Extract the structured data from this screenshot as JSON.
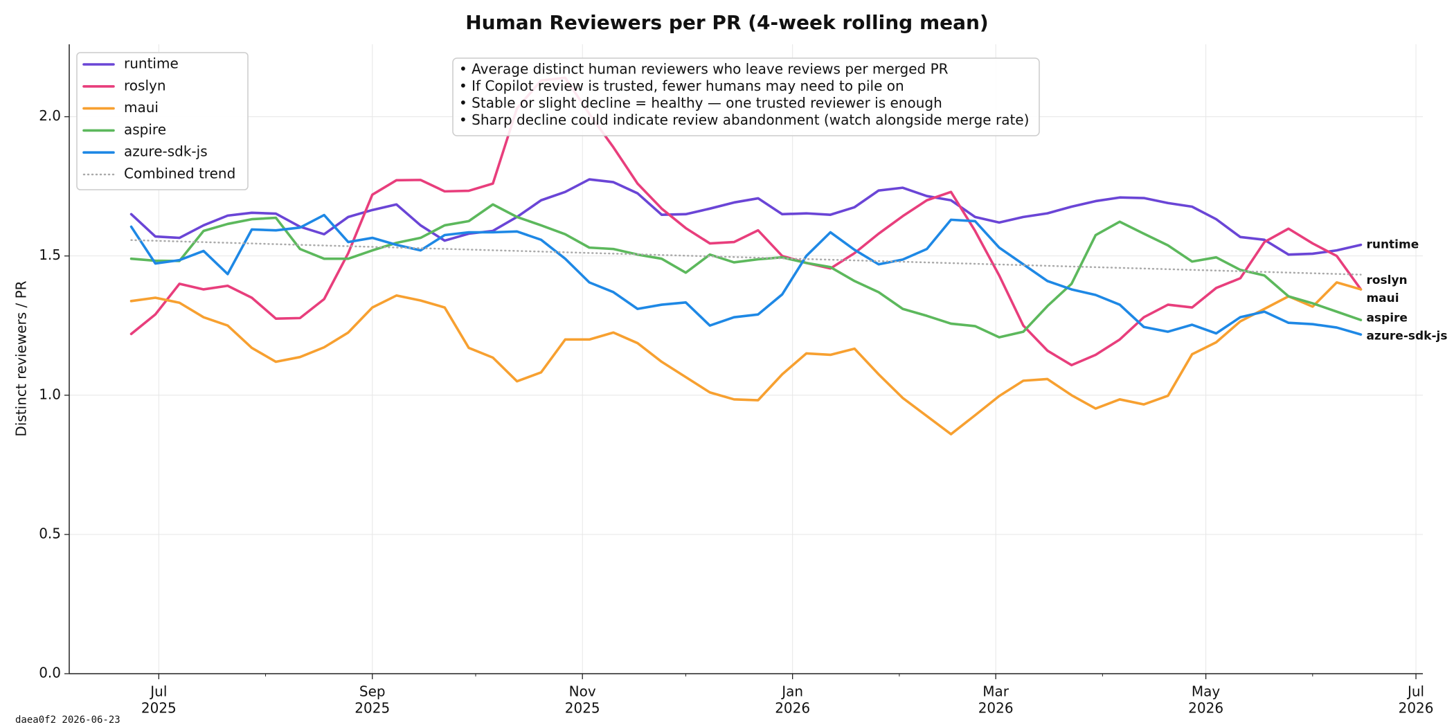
{
  "chart_data": {
    "type": "line",
    "title": "Human Reviewers per PR (4-week rolling mean)",
    "y_label": "Distinct reviewers / PR",
    "x": [
      "2025-06-23",
      "2025-06-30",
      "2025-07-07",
      "2025-07-14",
      "2025-07-21",
      "2025-07-28",
      "2025-08-04",
      "2025-08-11",
      "2025-08-18",
      "2025-08-25",
      "2025-09-01",
      "2025-09-08",
      "2025-09-15",
      "2025-09-22",
      "2025-09-29",
      "2025-10-06",
      "2025-10-13",
      "2025-10-20",
      "2025-10-27",
      "2025-11-03",
      "2025-11-10",
      "2025-11-17",
      "2025-11-24",
      "2025-12-01",
      "2025-12-08",
      "2025-12-15",
      "2025-12-22",
      "2025-12-29",
      "2026-01-05",
      "2026-01-12",
      "2026-01-19",
      "2026-01-26",
      "2026-02-02",
      "2026-02-09",
      "2026-02-16",
      "2026-02-23",
      "2026-03-02",
      "2026-03-09",
      "2026-03-16",
      "2026-03-23",
      "2026-03-30",
      "2026-04-06",
      "2026-04-13",
      "2026-04-20",
      "2026-04-27",
      "2026-05-04",
      "2026-05-11",
      "2026-05-18",
      "2026-05-25",
      "2026-06-01",
      "2026-06-08",
      "2026-06-15"
    ],
    "series": [
      {
        "name": "runtime",
        "color": "#6a45d6",
        "end_label": true,
        "values": [
          1.65,
          1.57,
          1.565,
          1.61,
          1.645,
          1.655,
          1.652,
          1.605,
          1.578,
          1.64,
          1.665,
          1.685,
          1.61,
          1.555,
          1.58,
          1.59,
          1.64,
          1.7,
          1.73,
          1.775,
          1.765,
          1.725,
          1.648,
          1.65,
          1.67,
          1.692,
          1.707,
          1.65,
          1.653,
          1.648,
          1.675,
          1.735,
          1.745,
          1.715,
          1.7,
          1.64,
          1.62,
          1.64,
          1.653,
          1.677,
          1.697,
          1.71,
          1.708,
          1.69,
          1.677,
          1.632,
          1.568,
          1.558,
          1.505,
          1.508,
          1.52,
          1.54
        ]
      },
      {
        "name": "roslyn",
        "color": "#e83e7c",
        "end_label": true,
        "values": [
          1.22,
          1.29,
          1.4,
          1.38,
          1.393,
          1.35,
          1.275,
          1.277,
          1.345,
          1.51,
          1.72,
          1.772,
          1.773,
          1.732,
          1.734,
          1.76,
          2.03,
          2.13,
          2.14,
          2.01,
          1.89,
          1.76,
          1.67,
          1.6,
          1.545,
          1.55,
          1.592,
          1.5,
          1.475,
          1.455,
          1.51,
          1.58,
          1.643,
          1.7,
          1.73,
          1.59,
          1.43,
          1.25,
          1.16,
          1.108,
          1.145,
          1.2,
          1.28,
          1.325,
          1.315,
          1.385,
          1.42,
          1.55,
          1.598,
          1.545,
          1.5,
          1.38
        ]
      },
      {
        "name": "maui",
        "color": "#f7a030",
        "end_label": true,
        "values": [
          1.338,
          1.35,
          1.332,
          1.28,
          1.25,
          1.17,
          1.12,
          1.137,
          1.172,
          1.225,
          1.315,
          1.358,
          1.34,
          1.315,
          1.17,
          1.135,
          1.05,
          1.082,
          1.2,
          1.2,
          1.225,
          1.187,
          1.12,
          1.065,
          1.01,
          0.985,
          0.982,
          1.075,
          1.15,
          1.145,
          1.167,
          1.075,
          0.99,
          0.925,
          0.86,
          0.928,
          0.997,
          1.052,
          1.058,
          1.0,
          0.952,
          0.985,
          0.967,
          0.998,
          1.147,
          1.19,
          1.265,
          1.31,
          1.355,
          1.318,
          1.405,
          1.38
        ]
      },
      {
        "name": "aspire",
        "color": "#5cb85c",
        "end_label": true,
        "values": [
          1.49,
          1.483,
          1.482,
          1.59,
          1.615,
          1.632,
          1.637,
          1.525,
          1.49,
          1.49,
          1.52,
          1.547,
          1.565,
          1.61,
          1.625,
          1.685,
          1.64,
          1.61,
          1.578,
          1.53,
          1.525,
          1.505,
          1.49,
          1.44,
          1.505,
          1.477,
          1.488,
          1.495,
          1.475,
          1.46,
          1.41,
          1.37,
          1.31,
          1.285,
          1.257,
          1.248,
          1.208,
          1.228,
          1.32,
          1.4,
          1.575,
          1.623,
          1.58,
          1.538,
          1.48,
          1.495,
          1.45,
          1.43,
          1.355,
          1.33,
          1.3,
          1.27
        ]
      },
      {
        "name": "azure-sdk-js",
        "color": "#1e88e5",
        "end_label": true,
        "values": [
          1.605,
          1.473,
          1.485,
          1.518,
          1.435,
          1.595,
          1.592,
          1.602,
          1.647,
          1.55,
          1.565,
          1.54,
          1.52,
          1.575,
          1.585,
          1.585,
          1.588,
          1.558,
          1.49,
          1.405,
          1.37,
          1.31,
          1.325,
          1.333,
          1.25,
          1.28,
          1.29,
          1.362,
          1.5,
          1.585,
          1.522,
          1.47,
          1.487,
          1.525,
          1.63,
          1.625,
          1.53,
          1.47,
          1.41,
          1.38,
          1.36,
          1.325,
          1.245,
          1.228,
          1.253,
          1.222,
          1.28,
          1.3,
          1.26,
          1.255,
          1.243,
          1.218
        ]
      },
      {
        "name": "Combined trend",
        "color": "#aaaaaa",
        "style": "dotted",
        "x": [
          "2025-06-23",
          "2026-06-15"
        ],
        "values": [
          1.557,
          1.433
        ]
      }
    ],
    "xlim": [
      "2025-06-05",
      "2026-07-03"
    ],
    "xticks": [
      {
        "value": "2025-07-01",
        "label": [
          "Jul",
          "2025"
        ]
      },
      {
        "value": "2025-09-01",
        "label": [
          "Sep",
          "2025"
        ]
      },
      {
        "value": "2025-11-01",
        "label": [
          "Nov",
          "2025"
        ]
      },
      {
        "value": "2026-01-01",
        "label": [
          "Jan",
          "2026"
        ]
      },
      {
        "value": "2026-03-01",
        "label": [
          "Mar",
          "2026"
        ]
      },
      {
        "value": "2026-05-01",
        "label": [
          "May",
          "2026"
        ]
      },
      {
        "value": "2026-07-01",
        "label": [
          "Jul",
          "2026"
        ]
      }
    ],
    "xminor_ticks": [
      "2025-08-01",
      "2025-10-01",
      "2025-12-01",
      "2026-02-01",
      "2026-04-01",
      "2026-06-01"
    ],
    "ylim": [
      0,
      2.26
    ],
    "yticks": [
      {
        "value": 0,
        "label": "0.0"
      },
      {
        "value": 0.5,
        "label": "0.5"
      },
      {
        "value": 1,
        "label": "1.0"
      },
      {
        "value": 1.5,
        "label": "1.5"
      },
      {
        "value": 2,
        "label": "2.0"
      }
    ],
    "grid": true,
    "legend": "upper left",
    "annotation": [
      "• Average distinct human reviewers who leave reviews per merged PR",
      "• If Copilot review is trusted, fewer humans may need to pile on",
      "• Stable or slight decline = healthy — one trusted reviewer is enough",
      "• Sharp decline could indicate review abandonment (watch alongside merge rate)"
    ],
    "footer": "daea0f2  2026-06-23"
  }
}
